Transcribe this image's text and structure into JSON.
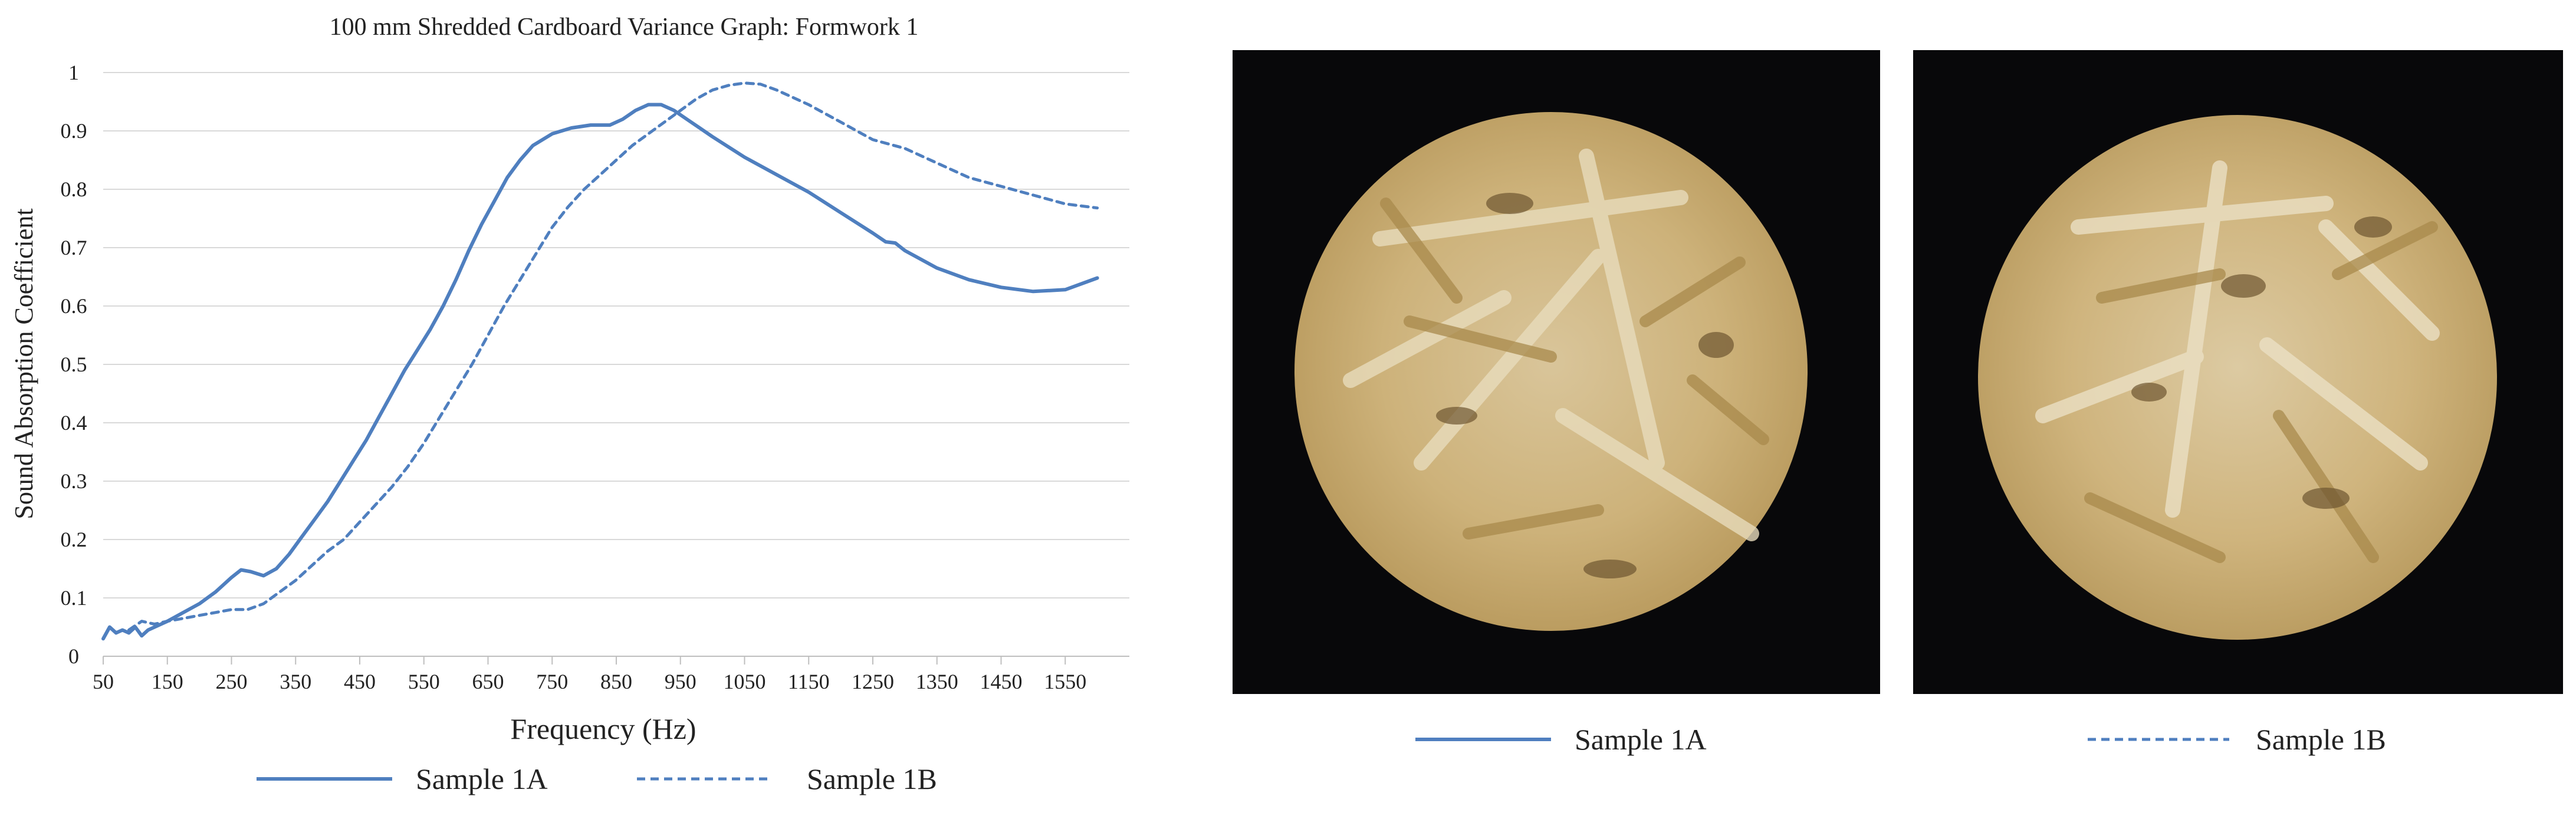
{
  "chart_data": {
    "type": "line",
    "title": "100 mm Shredded Cardboard Variance Graph: Formwork 1",
    "xlabel": "Frequency (Hz)",
    "ylabel": "Sound Absorption Coefficient",
    "xlim": [
      50,
      1650
    ],
    "ylim": [
      0,
      1
    ],
    "grid": true,
    "legend": "bottom",
    "x_ticks": [
      "50",
      "150",
      "250",
      "350",
      "450",
      "550",
      "650",
      "750",
      "850",
      "950",
      "1050",
      "1150",
      "1250",
      "1350",
      "1450",
      "1550"
    ],
    "y_ticks": [
      "0",
      "0.1",
      "0.2",
      "0.3",
      "0.4",
      "0.5",
      "0.6",
      "0.7",
      "0.8",
      "0.9",
      "1"
    ],
    "series": [
      {
        "name": "Sample 1A",
        "style": "solid",
        "color": "#4f7fbf",
        "x": [
          50,
          60,
          70,
          80,
          90,
          100,
          110,
          120,
          130,
          150,
          175,
          200,
          225,
          250,
          265,
          280,
          300,
          320,
          340,
          360,
          380,
          400,
          420,
          440,
          460,
          480,
          500,
          520,
          540,
          560,
          580,
          600,
          620,
          640,
          660,
          680,
          700,
          720,
          750,
          780,
          810,
          840,
          860,
          880,
          900,
          920,
          940,
          960,
          980,
          1000,
          1050,
          1100,
          1150,
          1200,
          1250,
          1270,
          1285,
          1300,
          1350,
          1400,
          1450,
          1500,
          1550,
          1600
        ],
        "y": [
          0.03,
          0.05,
          0.04,
          0.045,
          0.04,
          0.05,
          0.035,
          0.045,
          0.05,
          0.06,
          0.075,
          0.09,
          0.11,
          0.135,
          0.148,
          0.145,
          0.138,
          0.15,
          0.175,
          0.205,
          0.235,
          0.265,
          0.3,
          0.335,
          0.37,
          0.41,
          0.45,
          0.49,
          0.525,
          0.56,
          0.6,
          0.645,
          0.695,
          0.74,
          0.78,
          0.82,
          0.85,
          0.875,
          0.895,
          0.905,
          0.91,
          0.91,
          0.92,
          0.935,
          0.945,
          0.945,
          0.935,
          0.92,
          0.905,
          0.89,
          0.855,
          0.825,
          0.795,
          0.76,
          0.725,
          0.71,
          0.708,
          0.695,
          0.665,
          0.645,
          0.632,
          0.625,
          0.628,
          0.648
        ]
      },
      {
        "name": "Sample 1B",
        "style": "dashed",
        "color": "#4f7fbf",
        "x": [
          90,
          110,
          130,
          150,
          175,
          200,
          225,
          250,
          275,
          300,
          325,
          350,
          375,
          400,
          425,
          450,
          475,
          500,
          525,
          550,
          575,
          600,
          625,
          650,
          675,
          700,
          725,
          750,
          775,
          800,
          825,
          850,
          875,
          900,
          925,
          950,
          975,
          1000,
          1025,
          1050,
          1075,
          1100,
          1150,
          1200,
          1250,
          1300,
          1350,
          1400,
          1450,
          1500,
          1550,
          1600
        ],
        "y": [
          0.045,
          0.06,
          0.055,
          0.06,
          0.065,
          0.07,
          0.075,
          0.08,
          0.08,
          0.09,
          0.11,
          0.13,
          0.155,
          0.18,
          0.2,
          0.23,
          0.26,
          0.29,
          0.325,
          0.365,
          0.41,
          0.455,
          0.5,
          0.55,
          0.6,
          0.645,
          0.69,
          0.735,
          0.77,
          0.8,
          0.825,
          0.85,
          0.875,
          0.895,
          0.915,
          0.935,
          0.955,
          0.97,
          0.978,
          0.982,
          0.98,
          0.97,
          0.945,
          0.915,
          0.885,
          0.87,
          0.845,
          0.82,
          0.805,
          0.79,
          0.775,
          0.768
        ]
      }
    ]
  },
  "legend_bottom_left": [
    {
      "name": "Sample 1A",
      "style": "solid"
    },
    {
      "name": "Sample 1B",
      "style": "dashed"
    }
  ],
  "photos": [
    {
      "legend_label": "Sample 1A",
      "legend_style": "solid"
    },
    {
      "legend_label": "Sample 1B",
      "legend_style": "dashed"
    }
  ],
  "colors": {
    "series": "#4f7fbf",
    "grid": "#d9d9d9",
    "photo_background": "#08080a",
    "sample_surface": "#d9c08a"
  }
}
